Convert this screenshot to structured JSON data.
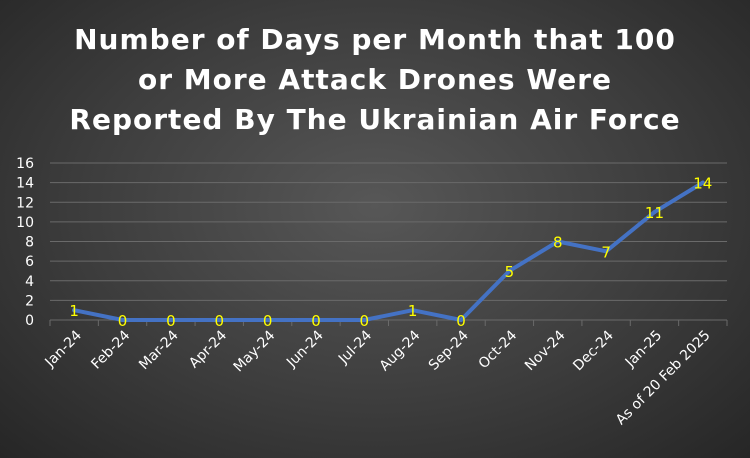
{
  "chart_data": {
    "type": "line",
    "title_lines": [
      "Number of Days per Month that 100",
      "or More Attack Drones Were",
      "Reported By The Ukrainian Air Force"
    ],
    "categories": [
      "Jan-24",
      "Feb-24",
      "Mar-24",
      "Apr-24",
      "May-24",
      "Jun-24",
      "Jul-24",
      "Aug-24",
      "Sep-24",
      "Oct-24",
      "Nov-24",
      "Dec-24",
      "Jan-25",
      "As of 20 Feb 2025"
    ],
    "series": [
      {
        "values": [
          1,
          0,
          0,
          0,
          0,
          0,
          0,
          1,
          0,
          5,
          8,
          7,
          11,
          14
        ]
      }
    ],
    "xlabel": "",
    "ylabel": "",
    "ylim": [
      0,
      16
    ],
    "yticks": [
      0,
      2,
      4,
      6,
      8,
      10,
      12,
      14,
      16
    ],
    "grid": true,
    "data_labels": true,
    "legend": "none",
    "colors": {
      "line": "#4472C4",
      "data_label": "#FFFF00",
      "text": "#FFFFFF",
      "gridline": "#6A6A6A"
    }
  }
}
